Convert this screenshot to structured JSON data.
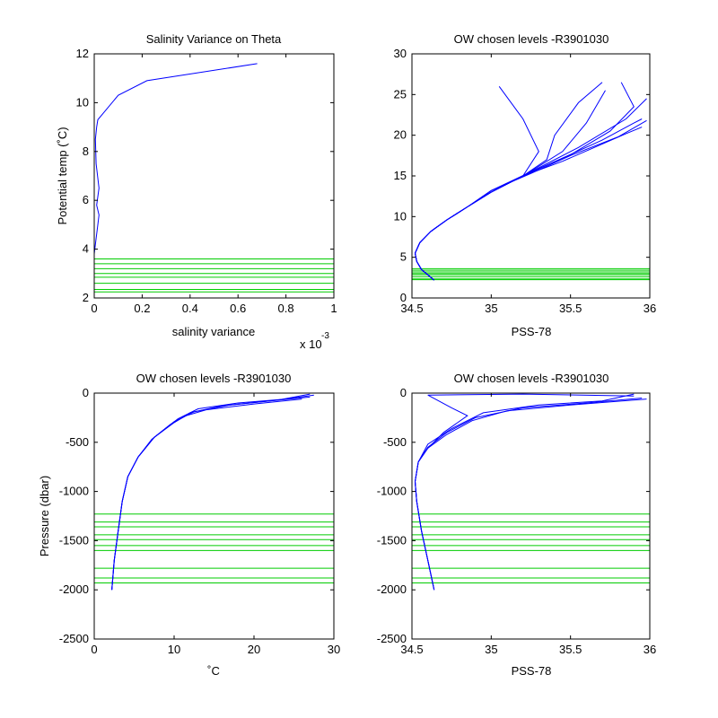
{
  "colors": {
    "profile": "#0000ff",
    "levels": "#00cc00",
    "axes": "#000000",
    "background": "#ffffff"
  },
  "chart_data": [
    {
      "type": "line",
      "title": "Salinity Variance on Theta",
      "xlabel": "salinity variance",
      "ylabel": "Potential temp (˚C)",
      "x_multiplier": "x 10",
      "x_multiplier_exponent": "-3",
      "xlim": [
        0,
        1
      ],
      "ylim": [
        2,
        12
      ],
      "xticks": [
        "0",
        "0.2",
        "0.4",
        "0.6",
        "0.8",
        "1"
      ],
      "yticks": [
        "2",
        "4",
        "6",
        "8",
        "10",
        "12"
      ],
      "grid": false,
      "series": [
        {
          "x": [
            0.0,
            0.005,
            0.015,
            0.02,
            0.01,
            0.02,
            0.008,
            0.005,
            0.01,
            0.015,
            0.1,
            0.22,
            0.68
          ],
          "y": [
            3.8,
            4.2,
            5.0,
            5.4,
            5.8,
            6.5,
            7.5,
            8.5,
            9.0,
            9.3,
            10.3,
            10.9,
            11.6
          ]
        }
      ],
      "chosen_levels": [
        2.25,
        2.35,
        2.6,
        2.85,
        3.0,
        3.2,
        3.4,
        3.6
      ]
    },
    {
      "type": "line",
      "title": "OW chosen levels -R3901030",
      "xlabel": "PSS-78",
      "ylabel": "",
      "xlim": [
        34.5,
        36
      ],
      "ylim": [
        0,
        30
      ],
      "xticks": [
        "34.5",
        "35",
        "35.5",
        "36"
      ],
      "yticks": [
        "0",
        "5",
        "10",
        "15",
        "20",
        "25",
        "30"
      ],
      "grid": false,
      "series": [
        {
          "x": [
            34.64,
            34.56,
            34.53,
            34.52,
            34.55,
            34.62,
            34.72,
            34.85,
            35.0,
            35.2,
            35.45,
            35.7,
            35.9,
            35.95
          ],
          "y": [
            2.2,
            3.5,
            4.5,
            5.5,
            6.8,
            8.2,
            9.6,
            11.2,
            13.0,
            15.0,
            17.2,
            19.4,
            21.5,
            22.0
          ]
        },
        {
          "x": [
            34.64,
            34.56,
            34.53,
            34.52,
            34.55,
            34.62,
            34.72,
            34.85,
            35.0,
            35.22,
            35.5,
            35.75,
            35.9,
            35.82
          ],
          "y": [
            2.2,
            3.5,
            4.5,
            5.5,
            6.8,
            8.2,
            9.6,
            11.2,
            13.0,
            15.2,
            17.6,
            20.5,
            23.5,
            26.5
          ]
        },
        {
          "x": [
            34.64,
            34.56,
            34.53,
            34.52,
            34.55,
            34.62,
            34.72,
            34.85,
            35.0,
            35.25,
            35.55,
            35.85,
            35.98
          ],
          "y": [
            2.2,
            3.5,
            4.5,
            5.5,
            6.8,
            8.2,
            9.6,
            11.2,
            13.2,
            15.5,
            18.5,
            22.0,
            24.5
          ]
        },
        {
          "x": [
            34.64,
            34.56,
            34.53,
            34.52,
            34.55,
            34.62,
            34.72,
            34.85,
            35.0,
            35.2,
            35.35,
            35.4,
            35.55,
            35.7
          ],
          "y": [
            2.2,
            3.5,
            4.5,
            5.5,
            6.8,
            8.2,
            9.6,
            11.2,
            13.0,
            15.0,
            17.0,
            20.0,
            24.0,
            26.5
          ]
        },
        {
          "x": [
            34.64,
            34.56,
            34.53,
            34.52,
            34.55,
            34.62,
            34.72,
            34.85,
            35.0,
            35.2,
            35.3,
            35.2,
            35.05
          ],
          "y": [
            2.2,
            3.5,
            4.5,
            5.5,
            6.8,
            8.2,
            9.6,
            11.2,
            13.0,
            15.0,
            18.0,
            22.0,
            26.0
          ]
        },
        {
          "x": [
            34.64,
            34.56,
            34.53,
            34.52,
            34.55,
            34.62,
            34.72,
            34.85,
            35.0,
            35.2,
            35.45,
            35.65,
            35.85,
            35.95
          ],
          "y": [
            2.2,
            3.5,
            4.5,
            5.5,
            6.8,
            8.2,
            9.6,
            11.2,
            13.0,
            15.0,
            16.8,
            18.5,
            20.2,
            21.0
          ]
        },
        {
          "x": [
            34.64,
            34.56,
            34.53,
            34.52,
            34.55,
            34.62,
            34.72,
            34.85,
            35.0,
            35.22,
            35.45,
            35.6,
            35.72
          ],
          "y": [
            2.2,
            3.5,
            4.5,
            5.5,
            6.8,
            8.2,
            9.6,
            11.2,
            13.0,
            15.2,
            18.0,
            21.5,
            25.5
          ]
        },
        {
          "x": [
            34.64,
            34.56,
            34.53,
            34.52,
            34.55,
            34.62,
            34.72,
            34.85,
            35.0,
            35.25,
            35.5,
            35.8,
            35.98
          ],
          "y": [
            2.2,
            3.5,
            4.5,
            5.5,
            6.8,
            8.2,
            9.6,
            11.2,
            13.2,
            15.3,
            17.5,
            19.8,
            21.8
          ]
        }
      ],
      "chosen_levels": [
        2.25,
        2.35,
        2.6,
        2.85,
        3.0,
        3.2,
        3.4,
        3.6
      ]
    },
    {
      "type": "line",
      "title": "OW chosen levels -R3901030",
      "xlabel": "˚C",
      "ylabel": "Pressure (dbar)",
      "xlim": [
        0,
        30
      ],
      "ylim": [
        -2500,
        0
      ],
      "xticks": [
        "0",
        "10",
        "20",
        "30"
      ],
      "yticks": [
        "-2500",
        "-2000",
        "-1500",
        "-1000",
        "-500",
        "0"
      ],
      "grid": false,
      "series": [
        {
          "x": [
            2.2,
            2.5,
            3.0,
            3.5,
            4.2,
            5.5,
            7.5,
            10.0,
            12.0,
            16.0,
            22.0,
            27.0
          ],
          "y": [
            -2000,
            -1700,
            -1400,
            -1100,
            -850,
            -650,
            -450,
            -300,
            -200,
            -130,
            -80,
            -40
          ]
        },
        {
          "x": [
            2.2,
            2.5,
            3.0,
            3.5,
            4.2,
            5.5,
            7.5,
            10.5,
            13.0,
            18.0,
            24.0,
            27.5
          ],
          "y": [
            -2000,
            -1700,
            -1400,
            -1100,
            -850,
            -650,
            -450,
            -260,
            -160,
            -100,
            -60,
            -20
          ]
        },
        {
          "x": [
            2.2,
            2.5,
            3.0,
            3.5,
            4.2,
            5.5,
            7.2,
            9.5,
            11.5,
            14.0,
            20.0,
            26.0
          ],
          "y": [
            -2000,
            -1700,
            -1400,
            -1100,
            -850,
            -650,
            -470,
            -320,
            -230,
            -170,
            -110,
            -60
          ]
        },
        {
          "x": [
            2.2,
            2.5,
            3.0,
            3.5,
            4.2,
            5.5,
            7.5,
            10.0,
            12.5,
            17.0,
            23.0,
            27.0
          ],
          "y": [
            -2000,
            -1700,
            -1400,
            -1100,
            -850,
            -650,
            -450,
            -290,
            -190,
            -120,
            -70,
            -10
          ]
        }
      ],
      "chosen_levels": [
        -1230,
        -1310,
        -1360,
        -1440,
        -1490,
        -1550,
        -1600,
        -1780,
        -1880,
        -1930
      ]
    },
    {
      "type": "line",
      "title": "OW chosen levels -R3901030",
      "xlabel": "PSS-78",
      "ylabel": "",
      "xlim": [
        34.5,
        36
      ],
      "ylim": [
        -2500,
        0
      ],
      "xticks": [
        "34.5",
        "35",
        "35.5",
        "36"
      ],
      "yticks": [
        "-2500",
        "-2000",
        "-1500",
        "-1000",
        "-500",
        "0"
      ],
      "grid": false,
      "series": [
        {
          "x": [
            34.64,
            34.6,
            34.56,
            34.53,
            34.52,
            34.54,
            34.6,
            34.72,
            34.9,
            35.2,
            35.6,
            35.95
          ],
          "y": [
            -2000,
            -1700,
            -1400,
            -1100,
            -900,
            -700,
            -550,
            -400,
            -250,
            -150,
            -100,
            -50
          ]
        },
        {
          "x": [
            34.64,
            34.6,
            34.56,
            34.53,
            34.52,
            34.54,
            34.6,
            34.75,
            34.95,
            35.3,
            35.7,
            35.9
          ],
          "y": [
            -2000,
            -1700,
            -1400,
            -1100,
            -900,
            -700,
            -520,
            -360,
            -200,
            -120,
            -80,
            -10
          ]
        },
        {
          "x": [
            34.64,
            34.6,
            34.56,
            34.53,
            34.52,
            34.54,
            34.6,
            34.72,
            34.88,
            35.1,
            35.5,
            35.98
          ],
          "y": [
            -2000,
            -1700,
            -1400,
            -1100,
            -900,
            -700,
            -560,
            -420,
            -280,
            -180,
            -120,
            -60
          ]
        },
        {
          "x": [
            34.64,
            34.6,
            34.56,
            34.53,
            34.52,
            34.54,
            34.6,
            34.7,
            34.85,
            34.75,
            34.6,
            35.2,
            35.9
          ],
          "y": [
            -2000,
            -1700,
            -1400,
            -1100,
            -900,
            -700,
            -560,
            -400,
            -230,
            -150,
            -20,
            -10,
            -30
          ]
        }
      ],
      "chosen_levels": [
        -1230,
        -1310,
        -1360,
        -1440,
        -1490,
        -1550,
        -1600,
        -1780,
        -1880,
        -1930
      ]
    }
  ]
}
